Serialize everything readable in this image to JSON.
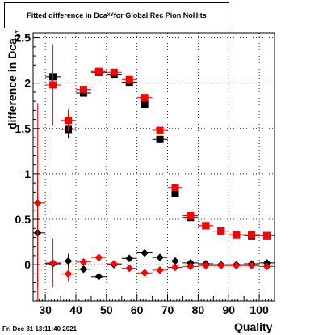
{
  "title": {
    "prefix": "Fitted difference in Dca",
    "subscript": "XY",
    "suffix": " for Global Rec Pion NoHits"
  },
  "footer": "Fri Dec 31 13:11:40 2021",
  "colors": {
    "black_series": "#000000",
    "red_series": "#ff0000",
    "grid": "#000000"
  },
  "chart_data": {
    "type": "scatter",
    "title": "Fitted difference in Dca_XY for Global Rec Pion NoHits",
    "xlabel": "Quality",
    "ylabel": {
      "main": "difference in Dca",
      "subscript": "XY"
    },
    "xlim": [
      26,
      105
    ],
    "ylim": [
      -0.4,
      2.55
    ],
    "x_ticks": [
      30,
      40,
      50,
      60,
      70,
      80,
      90,
      100
    ],
    "x_tick_labels": [
      "30",
      "40",
      "50",
      "60",
      "70",
      "80",
      "90",
      "100"
    ],
    "y_ticks": [
      0,
      0.5,
      1,
      1.5,
      2,
      2.5
    ],
    "y_tick_labels": [
      "0",
      "0.5",
      "1",
      "1.5",
      "2",
      "2.5"
    ],
    "grid": true,
    "series": [
      {
        "marker": "square",
        "color": "#000000",
        "points": [
          {
            "x": 32.5,
            "y": 2.07,
            "xerr": 2.5,
            "yerr": 0.04
          },
          {
            "x": 37.5,
            "y": 1.49,
            "xerr": 2.5,
            "yerr": 0.1
          },
          {
            "x": 42.5,
            "y": 1.89,
            "xerr": 2.5,
            "yerr": 0.03
          },
          {
            "x": 47.5,
            "y": 2.12,
            "xerr": 2.5,
            "yerr": 0.02
          },
          {
            "x": 52.5,
            "y": 2.09,
            "xerr": 2.5,
            "yerr": 0.02
          },
          {
            "x": 57.5,
            "y": 2.01,
            "xerr": 2.5,
            "yerr": 0.02
          },
          {
            "x": 62.5,
            "y": 1.77,
            "xerr": 2.5,
            "yerr": 0.02
          },
          {
            "x": 67.5,
            "y": 1.38,
            "xerr": 2.5,
            "yerr": 0.02
          },
          {
            "x": 72.5,
            "y": 0.79,
            "xerr": 2.5,
            "yerr": 0.02
          },
          {
            "x": 77.5,
            "y": 0.52,
            "xerr": 2.5,
            "yerr": 0.01
          },
          {
            "x": 82.5,
            "y": 0.43,
            "xerr": 2.5,
            "yerr": 0.01
          },
          {
            "x": 87.5,
            "y": 0.37,
            "xerr": 2.5,
            "yerr": 0.01
          },
          {
            "x": 92.5,
            "y": 0.33,
            "xerr": 2.5,
            "yerr": 0.01
          },
          {
            "x": 97.5,
            "y": 0.32,
            "xerr": 2.5,
            "yerr": 0.01
          },
          {
            "x": 102.5,
            "y": 0.32,
            "xerr": 2.5,
            "yerr": 0.01
          }
        ]
      },
      {
        "marker": "square",
        "color": "#ff0000",
        "points": [
          {
            "x": 32.5,
            "y": 1.98,
            "xerr": 2.5,
            "yerr": 0.45
          },
          {
            "x": 37.5,
            "y": 1.59,
            "xerr": 2.5,
            "yerr": 0.12
          },
          {
            "x": 42.5,
            "y": 1.93,
            "xerr": 2.5,
            "yerr": 0.03
          },
          {
            "x": 47.5,
            "y": 2.13,
            "xerr": 2.5,
            "yerr": 0.02
          },
          {
            "x": 52.5,
            "y": 2.12,
            "xerr": 2.5,
            "yerr": 0.02
          },
          {
            "x": 57.5,
            "y": 2.04,
            "xerr": 2.5,
            "yerr": 0.02
          },
          {
            "x": 62.5,
            "y": 1.84,
            "xerr": 2.5,
            "yerr": 0.02
          },
          {
            "x": 67.5,
            "y": 1.48,
            "xerr": 2.5,
            "yerr": 0.02
          },
          {
            "x": 72.5,
            "y": 0.85,
            "xerr": 2.5,
            "yerr": 0.02
          },
          {
            "x": 77.5,
            "y": 0.54,
            "xerr": 2.5,
            "yerr": 0.01
          },
          {
            "x": 82.5,
            "y": 0.43,
            "xerr": 2.5,
            "yerr": 0.01
          },
          {
            "x": 87.5,
            "y": 0.37,
            "xerr": 2.5,
            "yerr": 0.01
          },
          {
            "x": 92.5,
            "y": 0.33,
            "xerr": 2.5,
            "yerr": 0.01
          },
          {
            "x": 97.5,
            "y": 0.33,
            "xerr": 2.5,
            "yerr": 0.01
          },
          {
            "x": 102.5,
            "y": 0.32,
            "xerr": 2.5,
            "yerr": 0.01
          }
        ]
      },
      {
        "marker": "diamond",
        "color": "#000000",
        "points": [
          {
            "x": 27.5,
            "y": 0.35,
            "xerr": 2.5,
            "yerr": 0.6
          },
          {
            "x": 32.5,
            "y": 0.01,
            "xerr": 2.5,
            "yerr": 0.05
          },
          {
            "x": 37.5,
            "y": 0.04,
            "xerr": 2.5,
            "yerr": 0.08
          },
          {
            "x": 42.5,
            "y": -0.05,
            "xerr": 2.5,
            "yerr": 0.02
          },
          {
            "x": 47.5,
            "y": -0.13,
            "xerr": 2.5,
            "yerr": 0.01
          },
          {
            "x": 52.5,
            "y": 0.0,
            "xerr": 2.5,
            "yerr": 0.01
          },
          {
            "x": 57.5,
            "y": 0.07,
            "xerr": 2.5,
            "yerr": 0.01
          },
          {
            "x": 62.5,
            "y": 0.13,
            "xerr": 2.5,
            "yerr": 0.01
          },
          {
            "x": 67.5,
            "y": 0.08,
            "xerr": 2.5,
            "yerr": 0.01
          },
          {
            "x": 72.5,
            "y": 0.04,
            "xerr": 2.5,
            "yerr": 0.01
          },
          {
            "x": 77.5,
            "y": 0.02,
            "xerr": 2.5,
            "yerr": 0.01
          },
          {
            "x": 82.5,
            "y": 0.01,
            "xerr": 2.5,
            "yerr": 0.01
          },
          {
            "x": 87.5,
            "y": 0.0,
            "xerr": 2.5,
            "yerr": 0.01
          },
          {
            "x": 92.5,
            "y": 0.0,
            "xerr": 2.5,
            "yerr": 0.01
          },
          {
            "x": 97.5,
            "y": 0.01,
            "xerr": 2.5,
            "yerr": 0.01
          },
          {
            "x": 102.5,
            "y": 0.02,
            "xerr": 2.5,
            "yerr": 0.01
          }
        ]
      },
      {
        "marker": "diamond",
        "color": "#ff0000",
        "points": [
          {
            "x": 27.5,
            "y": 0.68,
            "xerr": 2.5,
            "yerr": 1.1
          },
          {
            "x": 32.5,
            "y": 0.02,
            "xerr": 2.5,
            "yerr": 0.27
          },
          {
            "x": 37.5,
            "y": -0.1,
            "xerr": 2.5,
            "yerr": 0.08
          },
          {
            "x": 42.5,
            "y": 0.03,
            "xerr": 2.5,
            "yerr": 0.02
          },
          {
            "x": 47.5,
            "y": 0.08,
            "xerr": 2.5,
            "yerr": 0.01
          },
          {
            "x": 52.5,
            "y": 0.01,
            "xerr": 2.5,
            "yerr": 0.01
          },
          {
            "x": 57.5,
            "y": -0.04,
            "xerr": 2.5,
            "yerr": 0.01
          },
          {
            "x": 62.5,
            "y": -0.09,
            "xerr": 2.5,
            "yerr": 0.01
          },
          {
            "x": 67.5,
            "y": -0.06,
            "xerr": 2.5,
            "yerr": 0.01
          },
          {
            "x": 72.5,
            "y": -0.03,
            "xerr": 2.5,
            "yerr": 0.01
          },
          {
            "x": 77.5,
            "y": -0.02,
            "xerr": 2.5,
            "yerr": 0.01
          },
          {
            "x": 82.5,
            "y": -0.01,
            "xerr": 2.5,
            "yerr": 0.01
          },
          {
            "x": 87.5,
            "y": -0.01,
            "xerr": 2.5,
            "yerr": 0.01
          },
          {
            "x": 92.5,
            "y": -0.01,
            "xerr": 2.5,
            "yerr": 0.01
          },
          {
            "x": 97.5,
            "y": -0.01,
            "xerr": 2.5,
            "yerr": 0.01
          },
          {
            "x": 102.5,
            "y": -0.02,
            "xerr": 2.5,
            "yerr": 0.01
          }
        ]
      }
    ]
  }
}
